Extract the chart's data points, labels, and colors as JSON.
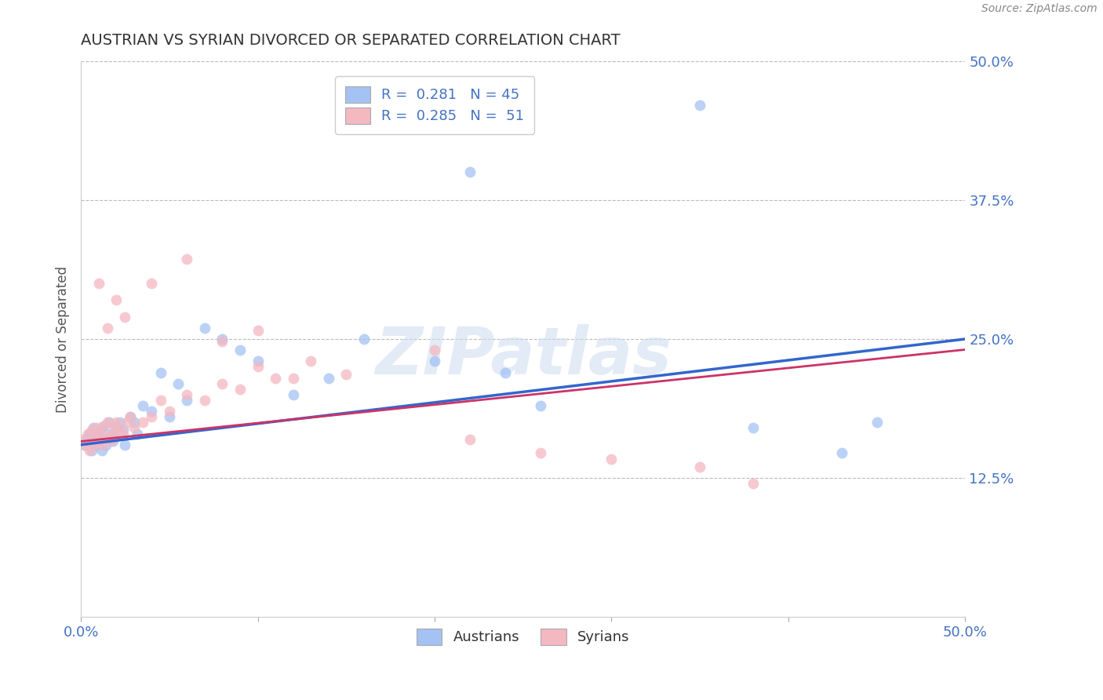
{
  "title": "AUSTRIAN VS SYRIAN DIVORCED OR SEPARATED CORRELATION CHART",
  "source": "Source: ZipAtlas.com",
  "ylabel": "Divorced or Separated",
  "xlim": [
    0,
    0.5
  ],
  "ylim": [
    0,
    0.5
  ],
  "xticks": [
    0.0,
    0.1,
    0.2,
    0.3,
    0.4,
    0.5
  ],
  "yticks": [
    0.0,
    0.125,
    0.25,
    0.375,
    0.5
  ],
  "blue_color": "#a4c2f4",
  "pink_color": "#f4b8c1",
  "blue_line_color": "#3366cc",
  "pink_line_color": "#cc3366",
  "watermark_text": "ZIPatlas",
  "legend_blue_label": "R =  0.281   N = 45",
  "legend_pink_label": "R =  0.285   N =  51",
  "austrians_x": [
    0.002,
    0.003,
    0.005,
    0.006,
    0.007,
    0.008,
    0.009,
    0.01,
    0.011,
    0.012,
    0.013,
    0.014,
    0.015,
    0.016,
    0.017,
    0.018,
    0.019,
    0.02,
    0.022,
    0.024,
    0.025,
    0.028,
    0.03,
    0.032,
    0.035,
    0.04,
    0.045,
    0.05,
    0.055,
    0.06,
    0.07,
    0.08,
    0.09,
    0.1,
    0.12,
    0.14,
    0.16,
    0.2,
    0.22,
    0.24,
    0.26,
    0.35,
    0.38,
    0.43,
    0.45
  ],
  "austrians_y": [
    0.155,
    0.16,
    0.165,
    0.15,
    0.17,
    0.155,
    0.158,
    0.162,
    0.168,
    0.15,
    0.172,
    0.155,
    0.16,
    0.175,
    0.165,
    0.158,
    0.162,
    0.17,
    0.175,
    0.168,
    0.155,
    0.18,
    0.175,
    0.165,
    0.19,
    0.185,
    0.22,
    0.18,
    0.21,
    0.195,
    0.26,
    0.25,
    0.24,
    0.23,
    0.2,
    0.215,
    0.25,
    0.23,
    0.4,
    0.22,
    0.19,
    0.46,
    0.17,
    0.148,
    0.175
  ],
  "syrians_x": [
    0.001,
    0.002,
    0.004,
    0.005,
    0.006,
    0.007,
    0.008,
    0.009,
    0.01,
    0.011,
    0.012,
    0.013,
    0.014,
    0.015,
    0.016,
    0.017,
    0.018,
    0.019,
    0.02,
    0.022,
    0.024,
    0.026,
    0.028,
    0.03,
    0.035,
    0.04,
    0.045,
    0.05,
    0.06,
    0.07,
    0.08,
    0.09,
    0.1,
    0.11,
    0.13,
    0.15,
    0.04,
    0.06,
    0.08,
    0.1,
    0.12,
    0.2,
    0.22,
    0.26,
    0.3,
    0.35,
    0.38,
    0.02,
    0.025,
    0.015,
    0.01
  ],
  "syrians_y": [
    0.16,
    0.155,
    0.165,
    0.15,
    0.168,
    0.155,
    0.162,
    0.17,
    0.158,
    0.165,
    0.155,
    0.172,
    0.16,
    0.175,
    0.162,
    0.158,
    0.165,
    0.17,
    0.175,
    0.168,
    0.165,
    0.175,
    0.18,
    0.17,
    0.175,
    0.18,
    0.195,
    0.185,
    0.2,
    0.195,
    0.21,
    0.205,
    0.225,
    0.215,
    0.23,
    0.218,
    0.3,
    0.322,
    0.248,
    0.258,
    0.215,
    0.24,
    0.16,
    0.148,
    0.142,
    0.135,
    0.12,
    0.285,
    0.27,
    0.26,
    0.3
  ]
}
